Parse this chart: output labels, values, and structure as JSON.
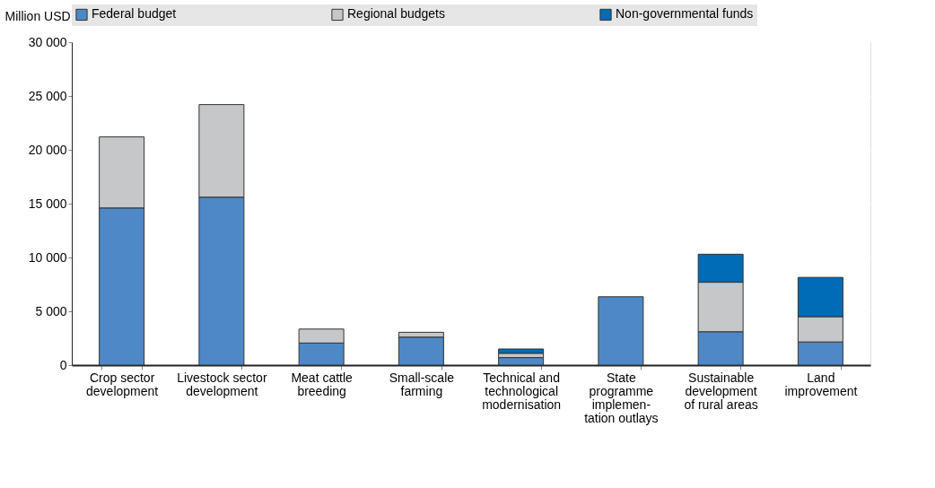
{
  "chart_data": {
    "type": "bar",
    "stacked": true,
    "ylabel": "Million USD",
    "categories": [
      "Crop sector\ndevelopment",
      "Livestock sector\ndevelopment",
      "Meat cattle\nbreeding",
      "Small-scale\nfarming",
      "Technical and\ntechnological\nmodernisation",
      "State\nprogramme\nimplemen-\ntation outlays",
      "Sustainable\ndevelopment\nof rural areas",
      "Land\nimprovement"
    ],
    "series": [
      {
        "name": "Federal budget",
        "color": "#4e88c7",
        "values": [
          14600,
          15600,
          2050,
          2600,
          700,
          6350,
          3100,
          2150
        ]
      },
      {
        "name": "Regional budgets",
        "color": "#c6c7c9",
        "values": [
          6600,
          8600,
          1300,
          450,
          400,
          null,
          4600,
          2350
        ]
      },
      {
        "name": "Non-governmental funds",
        "color": "#006bb6",
        "values": [
          null,
          null,
          null,
          null,
          400,
          null,
          2600,
          3650
        ]
      }
    ],
    "ylim": [
      0,
      30000
    ],
    "yticks": [
      {
        "value": 0,
        "label": "0"
      },
      {
        "value": 5000,
        "label": "5 000"
      },
      {
        "value": 10000,
        "label": "10 000"
      },
      {
        "value": 15000,
        "label": "15 000"
      },
      {
        "value": 20000,
        "label": "20 000"
      },
      {
        "value": 25000,
        "label": "25 000"
      },
      {
        "value": 30000,
        "label": "30 000"
      }
    ],
    "grid": true,
    "legend": "top"
  }
}
